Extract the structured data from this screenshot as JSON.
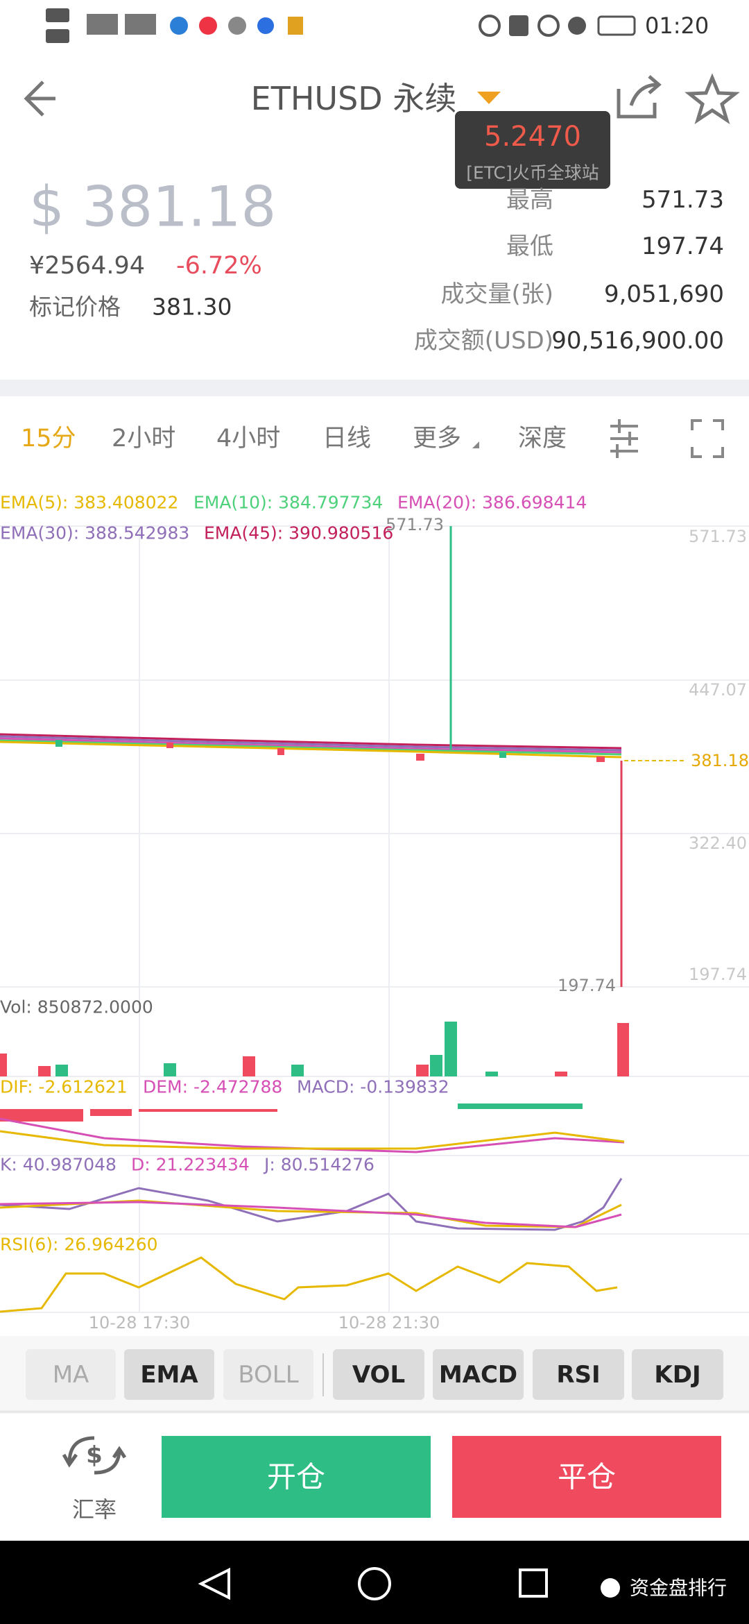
{
  "status_bar": {
    "time": "01:20"
  },
  "header": {
    "title": "ETHUSD 永续"
  },
  "tooltip": {
    "value": "5.2470",
    "label": "[ETC]火币全球站"
  },
  "price": {
    "main": "$ 381.18",
    "cny": "¥2564.94",
    "change": "-6.72%",
    "mark_label": "标记价格",
    "mark_value": "381.30"
  },
  "stats": [
    {
      "label": "最高",
      "value": "571.73"
    },
    {
      "label": "最低",
      "value": "197.74"
    },
    {
      "label": "成交量(张)",
      "value": "9,051,690"
    },
    {
      "label": "成交额(USD)",
      "value": "90,516,900.00"
    }
  ],
  "tabs": [
    "15分",
    "2小时",
    "4小时",
    "日线",
    "更多",
    "深度"
  ],
  "ema_labels": [
    "EMA(5): 383.408022",
    "EMA(10): 384.797734",
    "EMA(20): 386.698414",
    "EMA(30): 388.542983",
    "EMA(45): 390.980516"
  ],
  "chart": {
    "y_labels": [
      "571.73",
      "447.07",
      "322.40",
      "197.74"
    ],
    "last_price": "381.18",
    "high_marker": "571.73",
    "low_marker": "197.74",
    "x_labels": [
      "10-28 17:30",
      "10-28 21:30"
    ]
  },
  "volume_label": "Vol: 850872.0000",
  "macd_labels": [
    "DIF: -2.612621",
    "DEM: -2.472788",
    "MACD: -0.139832"
  ],
  "kdj_labels": [
    "K: 40.987048",
    "D: 21.223434",
    "J: 80.514276"
  ],
  "rsi_label": "RSI(6): 26.964260",
  "indicator_buttons": [
    "MA",
    "EMA",
    "BOLL",
    "VOL",
    "MACD",
    "RSI",
    "KDJ"
  ],
  "footer": {
    "rate": "汇率",
    "open": "开仓",
    "close": "平仓"
  },
  "watermark": "资金盘排行"
}
